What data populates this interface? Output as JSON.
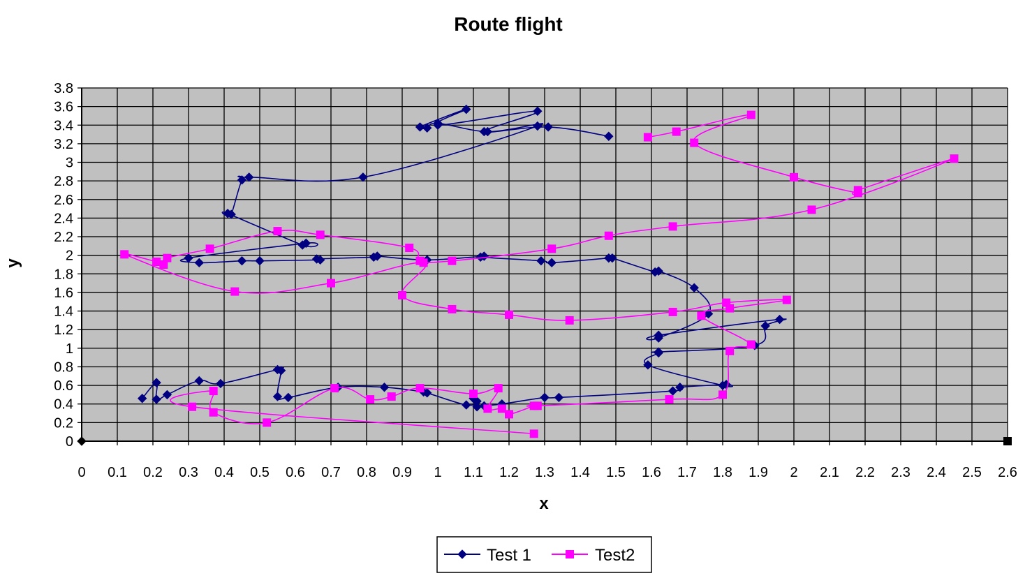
{
  "chart_data": {
    "type": "scatter",
    "title": "Route flight",
    "xlabel": "x",
    "ylabel": "y",
    "xlim": [
      0,
      2.6
    ],
    "ylim": [
      0,
      3.8
    ],
    "x_ticks": [
      "0",
      "0.1",
      "0.2",
      "0.3",
      "0.4",
      "0.5",
      "0.6",
      "0.7",
      "0.8",
      "0.9",
      "1",
      "1.1",
      "1.2",
      "1.3",
      "1.4",
      "1.5",
      "1.6",
      "1.7",
      "1.8",
      "1.9",
      "2",
      "2.1",
      "2.2",
      "2.3",
      "2.4",
      "2.5",
      "2.6"
    ],
    "y_ticks": [
      "0",
      "0.2",
      "0.4",
      "0.6",
      "0.8",
      "1",
      "1.2",
      "1.4",
      "1.6",
      "1.8",
      "2",
      "2.2",
      "2.4",
      "2.6",
      "2.8",
      "3",
      "3.2",
      "3.4",
      "3.6",
      "3.8"
    ],
    "grid": true,
    "plot_background": "#c0c0c0",
    "legend_position": "bottom",
    "series": [
      {
        "name": "Test 1",
        "color": "#000080",
        "marker": "diamond",
        "points": [
          [
            1.48,
            3.28
          ],
          [
            1.31,
            3.38
          ],
          [
            1.13,
            3.33
          ],
          [
            1.28,
            3.55
          ],
          [
            1.0,
            3.4
          ],
          [
            1.08,
            3.57
          ],
          [
            0.95,
            3.38
          ],
          [
            0.97,
            3.37
          ],
          [
            1.0,
            3.42
          ],
          [
            1.14,
            3.33
          ],
          [
            1.28,
            3.39
          ],
          [
            0.79,
            2.84
          ],
          [
            0.47,
            2.84
          ],
          [
            0.45,
            2.81
          ],
          [
            0.42,
            2.44
          ],
          [
            0.41,
            2.45
          ],
          [
            0.62,
            2.11
          ],
          [
            0.63,
            2.13
          ],
          [
            0.3,
            1.97
          ],
          [
            0.33,
            1.92
          ],
          [
            0.45,
            1.94
          ],
          [
            0.5,
            1.94
          ],
          [
            0.67,
            1.95
          ],
          [
            0.66,
            1.96
          ],
          [
            0.82,
            1.98
          ],
          [
            0.83,
            1.99
          ],
          [
            0.97,
            1.95
          ],
          [
            1.13,
            1.99
          ],
          [
            1.12,
            1.98
          ],
          [
            1.29,
            1.94
          ],
          [
            1.32,
            1.92
          ],
          [
            1.48,
            1.97
          ],
          [
            1.49,
            1.97
          ],
          [
            1.61,
            1.82
          ],
          [
            1.62,
            1.83
          ],
          [
            1.72,
            1.65
          ],
          [
            1.76,
            1.37
          ],
          [
            1.62,
            1.11
          ],
          [
            1.62,
            1.14
          ],
          [
            1.96,
            1.31
          ],
          [
            1.92,
            1.24
          ],
          [
            1.89,
            1.03
          ],
          [
            1.62,
            0.96
          ],
          [
            1.62,
            0.95
          ],
          [
            1.59,
            0.82
          ],
          [
            1.8,
            0.6
          ],
          [
            1.81,
            0.61
          ],
          [
            1.68,
            0.58
          ],
          [
            1.66,
            0.54
          ],
          [
            1.34,
            0.47
          ],
          [
            1.3,
            0.47
          ],
          [
            1.18,
            0.4
          ],
          [
            1.13,
            0.38
          ],
          [
            1.11,
            0.37
          ],
          [
            1.1,
            0.46
          ],
          [
            1.11,
            0.43
          ],
          [
            1.08,
            0.39
          ],
          [
            0.97,
            0.52
          ],
          [
            0.96,
            0.53
          ],
          [
            0.85,
            0.58
          ],
          [
            0.72,
            0.58
          ],
          [
            0.58,
            0.47
          ],
          [
            0.55,
            0.48
          ],
          [
            0.56,
            0.76
          ],
          [
            0.55,
            0.77
          ],
          [
            0.39,
            0.62
          ],
          [
            0.33,
            0.65
          ],
          [
            0.24,
            0.5
          ],
          [
            0.21,
            0.45
          ],
          [
            0.21,
            0.63
          ],
          [
            0.17,
            0.46
          ]
        ]
      },
      {
        "name": "Test2",
        "color": "#ff00ff",
        "marker": "square",
        "points": [
          [
            1.59,
            3.27
          ],
          [
            1.67,
            3.33
          ],
          [
            1.88,
            3.51
          ],
          [
            1.72,
            3.21
          ],
          [
            2.0,
            2.84
          ],
          [
            2.18,
            2.67
          ],
          [
            2.18,
            2.7
          ],
          [
            2.45,
            3.04
          ],
          [
            2.05,
            2.49
          ],
          [
            1.66,
            2.31
          ],
          [
            1.48,
            2.21
          ],
          [
            1.32,
            2.07
          ],
          [
            1.04,
            1.94
          ],
          [
            0.95,
            1.94
          ],
          [
            0.92,
            2.08
          ],
          [
            0.67,
            2.22
          ],
          [
            0.55,
            2.26
          ],
          [
            0.36,
            2.07
          ],
          [
            0.24,
            1.97
          ],
          [
            0.23,
            1.9
          ],
          [
            0.21,
            1.93
          ],
          [
            0.12,
            2.01
          ],
          [
            0.43,
            1.61
          ],
          [
            0.7,
            1.7
          ],
          [
            0.96,
            1.92
          ],
          [
            0.9,
            1.57
          ],
          [
            1.04,
            1.42
          ],
          [
            1.2,
            1.36
          ],
          [
            1.37,
            1.3
          ],
          [
            1.66,
            1.39
          ],
          [
            1.81,
            1.49
          ],
          [
            1.98,
            1.52
          ],
          [
            1.82,
            1.43
          ],
          [
            1.74,
            1.35
          ],
          [
            1.88,
            1.04
          ],
          [
            1.82,
            0.97
          ],
          [
            1.8,
            0.5
          ],
          [
            1.65,
            0.45
          ],
          [
            1.28,
            0.38
          ],
          [
            1.27,
            0.38
          ],
          [
            1.2,
            0.29
          ],
          [
            1.18,
            0.35
          ],
          [
            1.14,
            0.35
          ],
          [
            1.17,
            0.57
          ],
          [
            1.1,
            0.51
          ],
          [
            0.95,
            0.57
          ],
          [
            0.87,
            0.48
          ],
          [
            0.81,
            0.45
          ],
          [
            0.71,
            0.57
          ],
          [
            0.52,
            0.2
          ],
          [
            0.37,
            0.31
          ],
          [
            0.37,
            0.54
          ],
          [
            0.31,
            0.37
          ],
          [
            1.27,
            0.08
          ]
        ]
      }
    ]
  }
}
